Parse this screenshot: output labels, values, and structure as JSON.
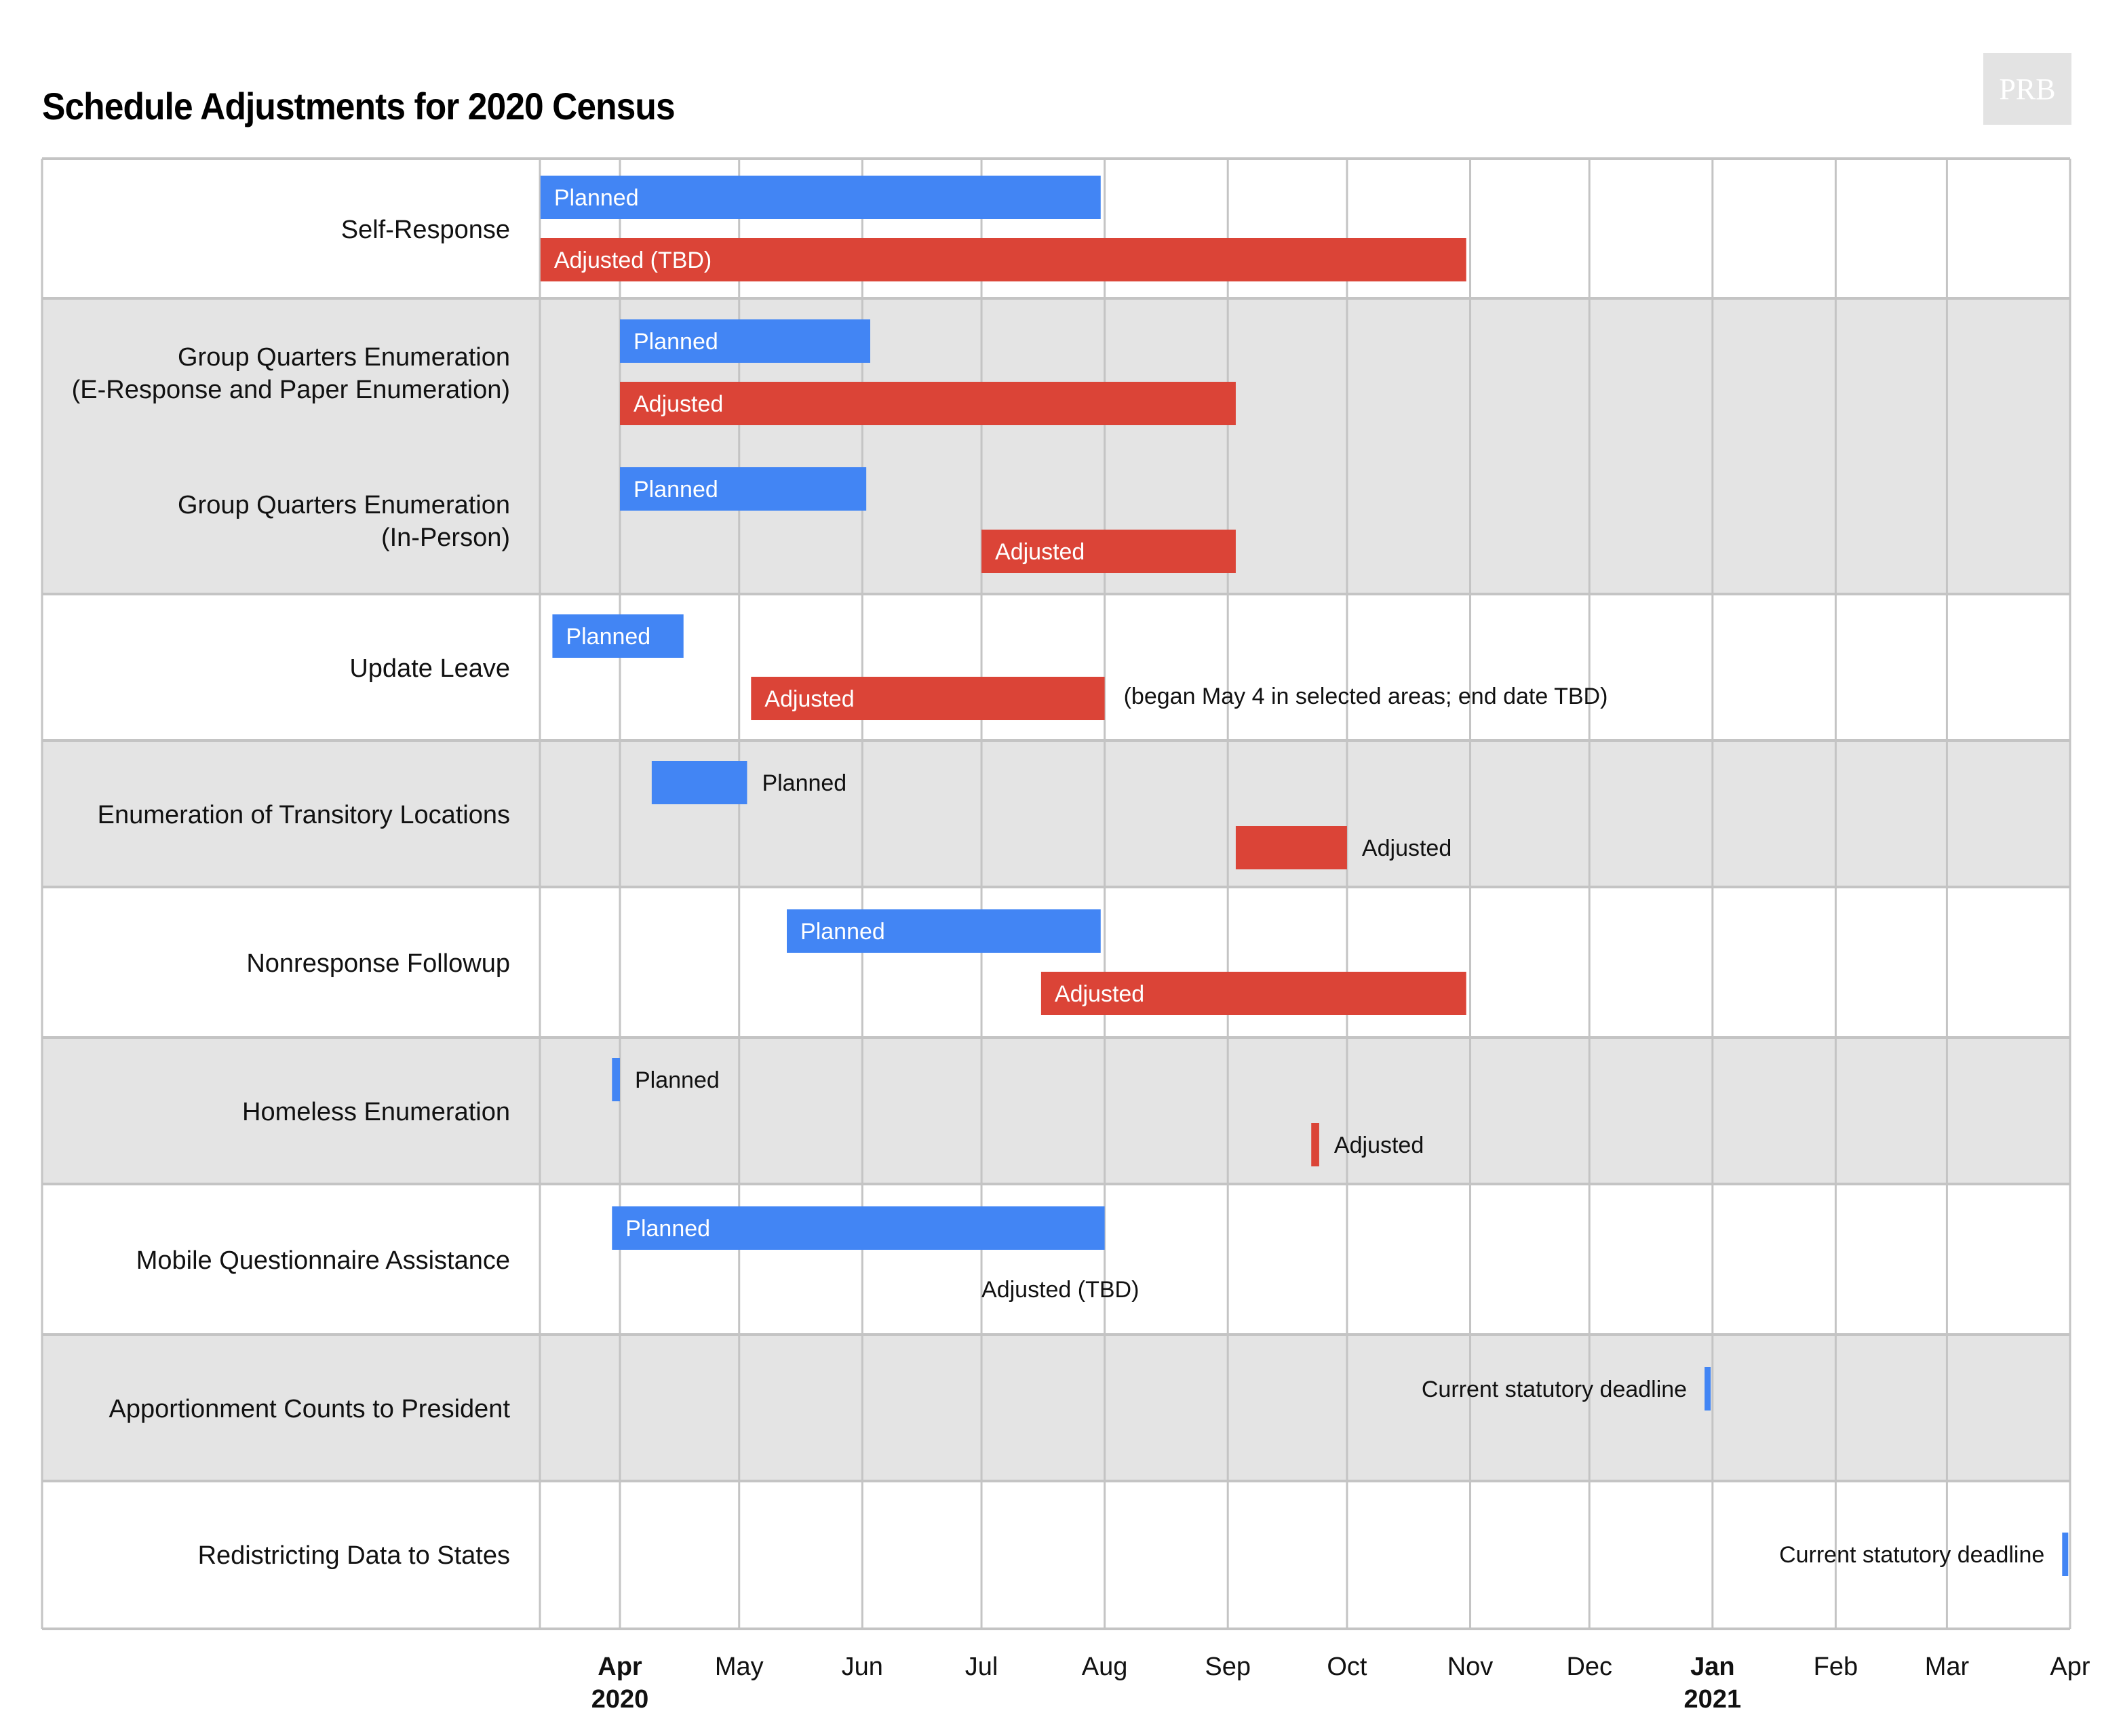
{
  "title": "Schedule Adjustments for 2020 Census",
  "logo_text": "PRB",
  "colors": {
    "planned": "#4285f4",
    "adjusted": "#db4437",
    "band_shaded": "#e4e4e4",
    "band_plain": "#ffffff",
    "grid": "#c4c4c4"
  },
  "chart_data": {
    "type": "gantt",
    "title": "Schedule Adjustments for 2020 Census",
    "xlabel": "",
    "ylabel": "",
    "x_range": [
      "2020-03-12",
      "2021-04-01"
    ],
    "grid": true,
    "ticks": [
      {
        "date": "2020-04-01",
        "label": "Apr",
        "year": "2020",
        "bold": true
      },
      {
        "date": "2020-05-01",
        "label": "May"
      },
      {
        "date": "2020-06-01",
        "label": "Jun"
      },
      {
        "date": "2020-07-01",
        "label": "Jul"
      },
      {
        "date": "2020-08-01",
        "label": "Aug"
      },
      {
        "date": "2020-09-01",
        "label": "Sep"
      },
      {
        "date": "2020-10-01",
        "label": "Oct"
      },
      {
        "date": "2020-11-01",
        "label": "Nov"
      },
      {
        "date": "2020-12-01",
        "label": "Dec"
      },
      {
        "date": "2021-01-01",
        "label": "Jan",
        "year": "2021",
        "bold": true
      },
      {
        "date": "2021-02-01",
        "label": "Feb"
      },
      {
        "date": "2021-03-01",
        "label": "Mar"
      },
      {
        "date": "2021-04-01",
        "label": "Apr"
      }
    ],
    "groups": [
      {
        "shaded": false,
        "rows": [
          {
            "label": [
              "Self-Response"
            ],
            "bars": [
              {
                "series": "planned",
                "start": "2020-03-12",
                "end": "2020-07-31",
                "text": "Planned",
                "text_pos": "inside"
              },
              {
                "series": "adjusted",
                "start": "2020-03-12",
                "end": "2020-10-31",
                "text": "Adjusted (TBD)",
                "text_pos": "inside"
              }
            ]
          }
        ]
      },
      {
        "shaded": true,
        "rows": [
          {
            "label": [
              "Group Quarters Enumeration",
              "(E-Response and Paper Enumeration)"
            ],
            "bars": [
              {
                "series": "planned",
                "start": "2020-04-01",
                "end": "2020-06-03",
                "text": "Planned",
                "text_pos": "inside"
              },
              {
                "series": "adjusted",
                "start": "2020-04-01",
                "end": "2020-09-03",
                "text": "Adjusted",
                "text_pos": "inside"
              }
            ]
          },
          {
            "label": [
              "Group Quarters Enumeration",
              "(In-Person)"
            ],
            "bars": [
              {
                "series": "planned",
                "start": "2020-04-01",
                "end": "2020-06-02",
                "text": "Planned",
                "text_pos": "inside"
              },
              {
                "series": "adjusted",
                "start": "2020-07-01",
                "end": "2020-09-03",
                "text": "Adjusted",
                "text_pos": "inside"
              }
            ]
          }
        ]
      },
      {
        "shaded": false,
        "rows": [
          {
            "label": [
              "Update Leave"
            ],
            "bars": [
              {
                "series": "planned",
                "start": "2020-03-15",
                "end": "2020-04-17",
                "text": "Planned",
                "text_pos": "inside"
              },
              {
                "series": "adjusted",
                "start": "2020-05-04",
                "end": "2020-08-01",
                "text": "Adjusted",
                "text_pos": "inside",
                "note": "(began May 4 in selected areas; end date TBD)"
              }
            ]
          }
        ]
      },
      {
        "shaded": true,
        "rows": [
          {
            "label": [
              "Enumeration of Transitory Locations"
            ],
            "bars": [
              {
                "series": "planned",
                "start": "2020-04-09",
                "end": "2020-05-03",
                "text": "Planned",
                "text_pos": "right"
              },
              {
                "series": "adjusted",
                "start": "2020-09-03",
                "end": "2020-10-01",
                "text": "Adjusted",
                "text_pos": "right"
              }
            ]
          }
        ]
      },
      {
        "shaded": false,
        "rows": [
          {
            "label": [
              "Nonresponse Followup"
            ],
            "bars": [
              {
                "series": "planned",
                "start": "2020-05-13",
                "end": "2020-07-31",
                "text": "Planned",
                "text_pos": "inside"
              },
              {
                "series": "adjusted",
                "start": "2020-07-16",
                "end": "2020-10-31",
                "text": "Adjusted",
                "text_pos": "inside"
              }
            ]
          }
        ]
      },
      {
        "shaded": true,
        "rows": [
          {
            "label": [
              "Homeless Enumeration"
            ],
            "bars": [
              {
                "series": "planned",
                "start": "2020-03-30",
                "end": "2020-04-01",
                "text": "Planned",
                "text_pos": "right"
              },
              {
                "series": "adjusted",
                "start": "2020-09-22",
                "end": "2020-09-24",
                "text": "Adjusted",
                "text_pos": "right"
              }
            ]
          }
        ]
      },
      {
        "shaded": false,
        "rows": [
          {
            "label": [
              "Mobile Questionnaire Assistance"
            ],
            "bars": [
              {
                "series": "planned",
                "start": "2020-03-30",
                "end": "2020-08-01",
                "text": "Planned",
                "text_pos": "inside"
              },
              {
                "series": "adjusted",
                "start": null,
                "end": null,
                "text": "Adjusted (TBD)",
                "text_pos": "text-only",
                "text_date": "2020-07-01"
              }
            ]
          }
        ]
      },
      {
        "shaded": true,
        "rows": [
          {
            "label": [
              "Apportionment Counts to President"
            ],
            "bars": [
              {
                "series": "planned",
                "start": "2020-12-30",
                "end": "2020-12-31",
                "text": "Current statutory deadline",
                "text_pos": "left",
                "slot": "upper"
              }
            ]
          }
        ]
      },
      {
        "shaded": false,
        "rows": [
          {
            "label": [
              "Redistricting Data to States"
            ],
            "bars": [
              {
                "series": "planned",
                "start": "2021-03-30",
                "end": "2021-03-31",
                "text": "Current statutory deadline",
                "text_pos": "left",
                "slot": "center"
              }
            ]
          }
        ]
      }
    ],
    "legend": "none (bars labeled directly)"
  }
}
